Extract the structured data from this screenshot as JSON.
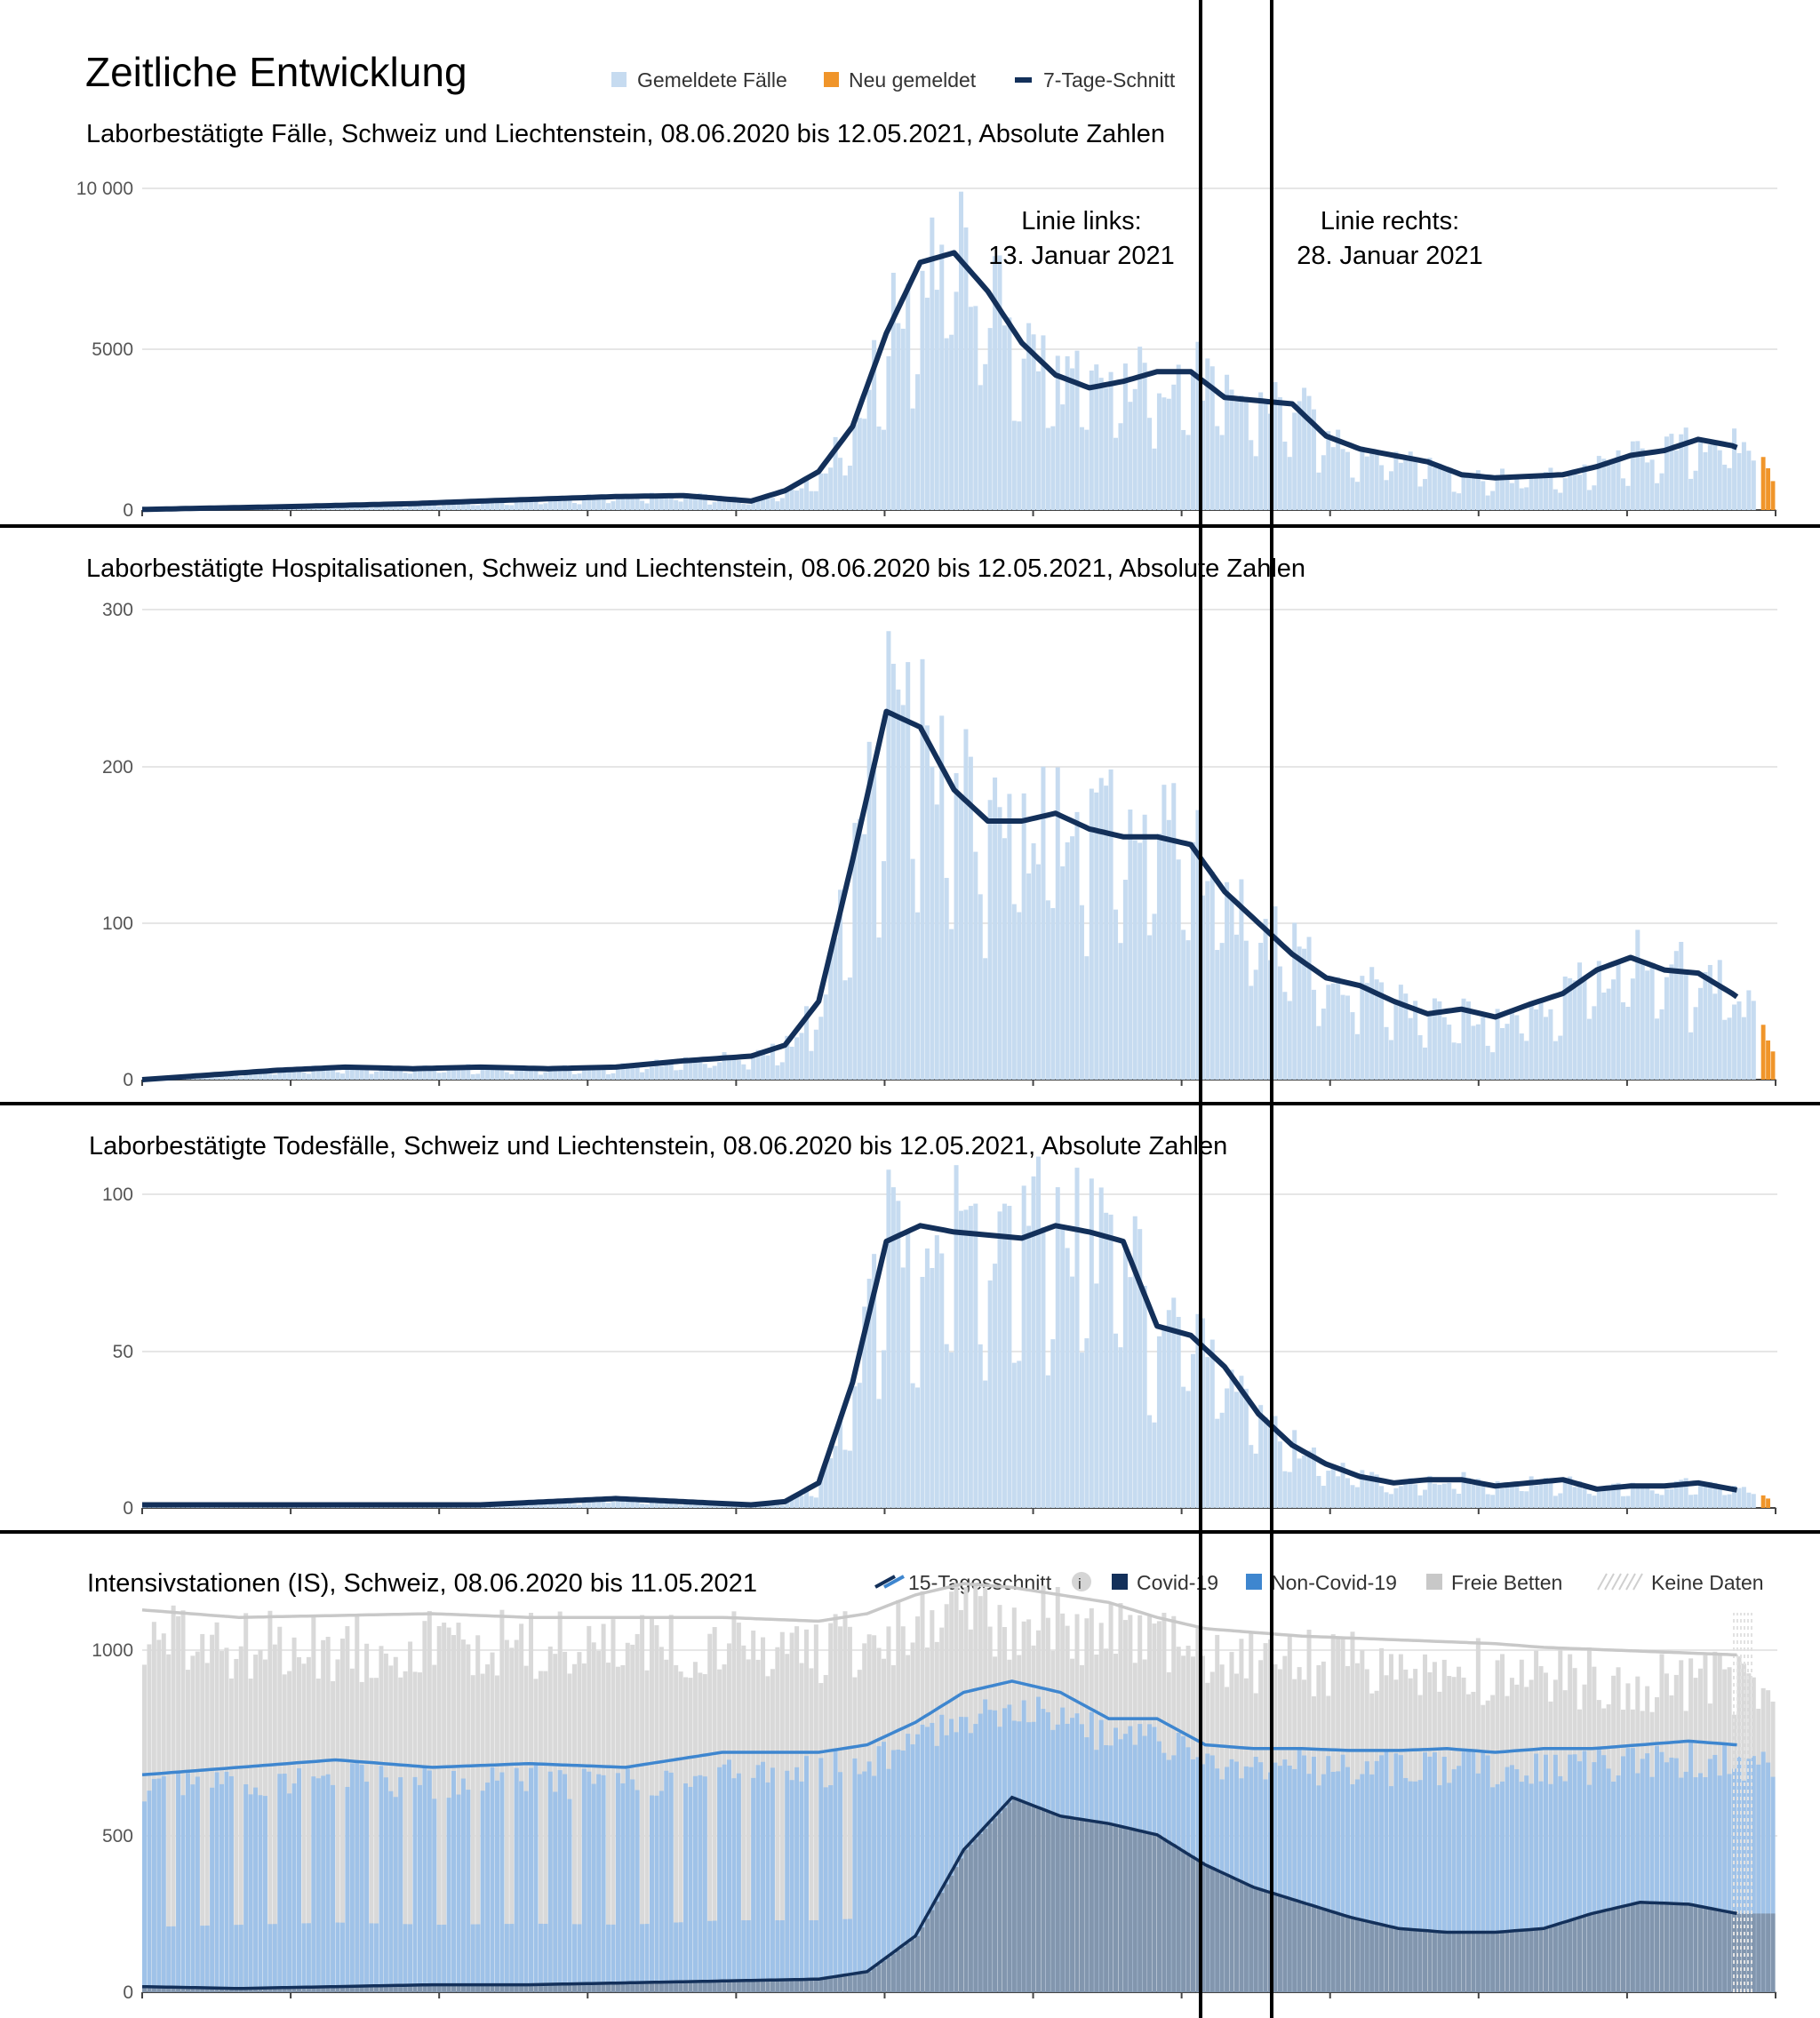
{
  "header": {
    "title": "Zeitliche Entwicklung",
    "legend": [
      {
        "label": "Gemeldete Fälle",
        "icon": "square",
        "color": "#c6dbf0"
      },
      {
        "label": "Neu gemeldet",
        "icon": "square",
        "color": "#f0952a"
      },
      {
        "label": "7-Tage-Schnitt",
        "icon": "line",
        "color": "#13305a"
      }
    ]
  },
  "annotations": {
    "left_line_1": "Linie links:",
    "left_line_2": "13. Januar 2021",
    "right_line_1": "Linie rechts:",
    "right_line_2": "28. Januar 2021"
  },
  "colors": {
    "bar": "#c6dbf0",
    "new": "#f0952a",
    "avg": "#13305a",
    "icu_free": "#d9d9d9",
    "icu_noncovid": "#9fc2e8",
    "icu_covid": "#8296ae",
    "icu_line_free": "#c8c8c8",
    "icu_line_noncovid": "#3e86cf",
    "icu_line_covid": "#13305a"
  },
  "chart_data": [
    {
      "type": "bar",
      "title": "Laborbestätigte Fälle, Schweiz und Liechtenstein, 08.06.2020 bis 12.05.2021, Absolute Zahlen",
      "yticks": [
        "10 000",
        "5000",
        "0"
      ],
      "ylim": [
        0,
        10000
      ],
      "x_dates": [
        "2020-06-08",
        "2021-05-12"
      ],
      "series": [
        {
          "name": "7-Tage-Schnitt",
          "x_day": [
            0,
            14,
            28,
            42,
            56,
            70,
            84,
            98,
            112,
            126,
            133,
            140,
            147,
            154,
            161,
            168,
            175,
            182,
            189,
            196,
            203,
            210,
            217,
            224,
            231,
            238,
            245,
            252,
            259,
            266,
            273,
            280,
            287,
            294,
            301,
            308,
            315,
            322,
            329,
            336
          ],
          "values": [
            20,
            60,
            100,
            150,
            200,
            280,
            350,
            420,
            450,
            280,
            600,
            1200,
            2600,
            5500,
            7700,
            8000,
            6800,
            5200,
            4200,
            3800,
            4000,
            4300,
            4300,
            3500,
            3400,
            3300,
            2300,
            1900,
            1700,
            1500,
            1100,
            1000,
            1050,
            1100,
            1350,
            1700,
            1850,
            2200,
            2000,
            1600
          ]
        },
        {
          "name": "Neu gemeldet",
          "x_day": [
            335,
            336,
            337
          ],
          "values": [
            1650,
            1300,
            900
          ]
        }
      ]
    },
    {
      "type": "bar",
      "title": "Laborbestätigte Hospitalisationen, Schweiz und Liechtenstein, 08.06.2020 bis 12.05.2021, Absolute Zahlen",
      "yticks": [
        "300",
        "200",
        "100",
        "0"
      ],
      "ylim": [
        0,
        300
      ],
      "x_dates": [
        "2020-06-08",
        "2021-05-12"
      ],
      "series": [
        {
          "name": "7-Tage-Schnitt",
          "x_day": [
            0,
            14,
            28,
            42,
            56,
            70,
            84,
            98,
            112,
            126,
            133,
            140,
            147,
            154,
            161,
            168,
            175,
            182,
            189,
            196,
            203,
            210,
            217,
            224,
            231,
            238,
            245,
            252,
            259,
            266,
            273,
            280,
            287,
            294,
            301,
            308,
            315,
            322,
            329,
            336
          ],
          "values": [
            0,
            3,
            6,
            8,
            7,
            8,
            7,
            8,
            12,
            15,
            22,
            50,
            140,
            235,
            225,
            185,
            165,
            165,
            170,
            160,
            155,
            155,
            150,
            120,
            100,
            80,
            65,
            60,
            50,
            42,
            45,
            40,
            48,
            55,
            70,
            78,
            70,
            68,
            55,
            40
          ]
        },
        {
          "name": "Neu gemeldet",
          "x_day": [
            335,
            336,
            337
          ],
          "values": [
            35,
            25,
            18
          ]
        }
      ]
    },
    {
      "type": "bar",
      "title": "Laborbestätigte Todesfälle, Schweiz und Liechtenstein, 08.06.2020 bis 12.05.2021, Absolute Zahlen",
      "yticks": [
        "100",
        "50",
        "0"
      ],
      "ylim": [
        0,
        100
      ],
      "x_dates": [
        "2020-06-08",
        "2021-05-12"
      ],
      "series": [
        {
          "name": "7-Tage-Schnitt",
          "x_day": [
            0,
            14,
            28,
            42,
            56,
            70,
            84,
            98,
            112,
            126,
            133,
            140,
            147,
            154,
            161,
            168,
            175,
            182,
            189,
            196,
            203,
            210,
            217,
            224,
            231,
            238,
            245,
            252,
            259,
            266,
            273,
            280,
            287,
            294,
            301,
            308,
            315,
            322,
            329,
            336
          ],
          "values": [
            1,
            1,
            1,
            1,
            1,
            1,
            2,
            3,
            2,
            1,
            2,
            8,
            40,
            85,
            90,
            88,
            87,
            86,
            90,
            88,
            85,
            58,
            55,
            45,
            30,
            20,
            14,
            10,
            8,
            9,
            9,
            7,
            8,
            9,
            6,
            7,
            7,
            8,
            6,
            4
          ]
        },
        {
          "name": "Neu gemeldet",
          "x_day": [
            335,
            336
          ],
          "values": [
            4,
            3
          ]
        }
      ]
    },
    {
      "type": "area",
      "title": "Intensivstationen (IS), Schweiz, 08.06.2020 bis 11.05.2021",
      "yticks": [
        "1000",
        "500",
        "0"
      ],
      "ylim": [
        0,
        1100
      ],
      "legend": [
        "15-Tagesschnitt",
        "Covid-19",
        "Non-Covid-19",
        "Freie Betten",
        "Keine Daten"
      ],
      "x_dates": [
        "2020-06-08",
        "2021-05-11"
      ],
      "series": [
        {
          "name": "Freie Betten",
          "x_day": [
            0,
            20,
            40,
            60,
            80,
            100,
            120,
            140,
            150,
            160,
            170,
            180,
            190,
            200,
            210,
            220,
            230,
            240,
            250,
            260,
            270,
            280,
            290,
            300,
            310,
            320,
            330
          ],
          "values": [
            1020,
            1000,
            1005,
            1010,
            1000,
            1000,
            1000,
            990,
            1010,
            1060,
            1090,
            1080,
            1060,
            1040,
            1000,
            970,
            960,
            950,
            945,
            940,
            935,
            930,
            920,
            915,
            910,
            905,
            900
          ]
        },
        {
          "name": "Non-Covid-19",
          "x_day": [
            0,
            20,
            40,
            60,
            80,
            100,
            120,
            140,
            150,
            160,
            170,
            180,
            190,
            200,
            210,
            220,
            230,
            240,
            250,
            260,
            270,
            280,
            290,
            300,
            310,
            320,
            330
          ],
          "values": [
            580,
            600,
            620,
            600,
            610,
            600,
            640,
            640,
            660,
            720,
            800,
            830,
            800,
            730,
            730,
            660,
            650,
            650,
            645,
            645,
            650,
            640,
            650,
            650,
            660,
            670,
            660
          ]
        },
        {
          "name": "Covid-19",
          "x_day": [
            0,
            20,
            40,
            60,
            80,
            100,
            120,
            140,
            150,
            160,
            170,
            180,
            190,
            200,
            210,
            220,
            230,
            240,
            250,
            260,
            270,
            280,
            290,
            300,
            310,
            320,
            330
          ],
          "values": [
            15,
            10,
            15,
            20,
            20,
            25,
            30,
            35,
            55,
            150,
            380,
            520,
            470,
            450,
            420,
            340,
            280,
            240,
            200,
            170,
            160,
            160,
            170,
            210,
            240,
            235,
            210
          ]
        }
      ]
    }
  ]
}
